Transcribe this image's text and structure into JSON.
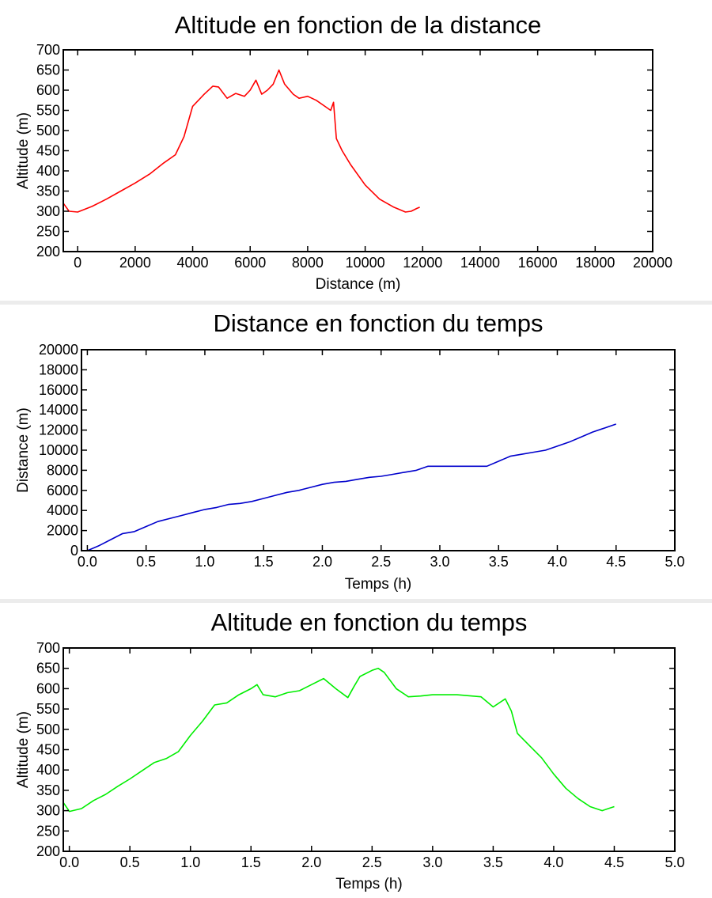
{
  "chart_data": [
    {
      "type": "line",
      "title": "Altitude en fonction de la distance",
      "xlabel": "Distance (m)",
      "ylabel": "Altitude (m)",
      "xlim": [
        -500,
        20000
      ],
      "ylim": [
        200,
        700
      ],
      "xticks": [
        0,
        2000,
        4000,
        6000,
        8000,
        10000,
        12000,
        14000,
        16000,
        18000,
        20000
      ],
      "yticks": [
        200,
        250,
        300,
        350,
        400,
        450,
        500,
        550,
        600,
        650,
        700
      ],
      "grid": false,
      "series": [
        {
          "color": "#ff0000",
          "x": [
            -500,
            -300,
            0,
            500,
            1000,
            1500,
            2000,
            2500,
            3000,
            3400,
            3700,
            4000,
            4400,
            4700,
            4900,
            5200,
            5500,
            5800,
            6000,
            6200,
            6400,
            6600,
            6800,
            7000,
            7200,
            7500,
            7700,
            8000,
            8300,
            8600,
            8800,
            8900,
            9000,
            9200,
            9500,
            10000,
            10500,
            11000,
            11400,
            11600,
            11800,
            11900
          ],
          "y": [
            320,
            300,
            298,
            312,
            330,
            350,
            370,
            392,
            420,
            440,
            485,
            560,
            590,
            610,
            608,
            580,
            592,
            585,
            600,
            625,
            590,
            600,
            615,
            650,
            615,
            590,
            580,
            585,
            575,
            560,
            550,
            570,
            480,
            450,
            415,
            365,
            330,
            310,
            298,
            300,
            307,
            310
          ]
        }
      ]
    },
    {
      "type": "line",
      "title": "Distance en fonction du temps",
      "xlabel": "Temps (h)",
      "ylabel": "Distance (m)",
      "xlim": [
        -0.05,
        5.0
      ],
      "ylim": [
        0,
        20000
      ],
      "xticks": [
        "0.0",
        "0.5",
        "1.0",
        "1.5",
        "2.0",
        "2.5",
        "3.0",
        "3.5",
        "4.0",
        "4.5",
        "5.0"
      ],
      "yticks": [
        0,
        2000,
        4000,
        6000,
        8000,
        10000,
        12000,
        14000,
        16000,
        18000,
        20000
      ],
      "grid": false,
      "series": [
        {
          "color": "#0000cc",
          "x": [
            0.0,
            0.1,
            0.2,
            0.3,
            0.4,
            0.5,
            0.6,
            0.7,
            0.8,
            0.9,
            1.0,
            1.1,
            1.2,
            1.3,
            1.4,
            1.5,
            1.6,
            1.7,
            1.8,
            1.9,
            2.0,
            2.1,
            2.2,
            2.3,
            2.4,
            2.5,
            2.6,
            2.7,
            2.8,
            2.9,
            3.0,
            3.1,
            3.2,
            3.3,
            3.4,
            3.5,
            3.6,
            3.7,
            3.8,
            3.9,
            4.0,
            4.1,
            4.2,
            4.3,
            4.4,
            4.5
          ],
          "y": [
            0,
            500,
            1100,
            1700,
            1900,
            2400,
            2900,
            3200,
            3500,
            3800,
            4100,
            4300,
            4600,
            4700,
            4900,
            5200,
            5500,
            5800,
            6000,
            6300,
            6600,
            6800,
            6900,
            7100,
            7300,
            7400,
            7600,
            7800,
            8000,
            8400,
            8400,
            8400,
            8400,
            8400,
            8400,
            8900,
            9400,
            9600,
            9800,
            10000,
            10400,
            10800,
            11300,
            11800,
            12200,
            12600
          ]
        }
      ]
    },
    {
      "type": "line",
      "title": "Altitude en fonction du temps",
      "xlabel": "Temps (h)",
      "ylabel": "Altitude (m)",
      "xlim": [
        -0.05,
        5.0
      ],
      "ylim": [
        200,
        700
      ],
      "xticks": [
        "0.0",
        "0.5",
        "1.0",
        "1.5",
        "2.0",
        "2.5",
        "3.0",
        "3.5",
        "4.0",
        "4.5",
        "5.0"
      ],
      "yticks": [
        200,
        250,
        300,
        350,
        400,
        450,
        500,
        550,
        600,
        650,
        700
      ],
      "grid": false,
      "series": [
        {
          "color": "#00ee00",
          "x": [
            -0.05,
            0.0,
            0.1,
            0.2,
            0.3,
            0.4,
            0.5,
            0.6,
            0.7,
            0.8,
            0.9,
            1.0,
            1.1,
            1.2,
            1.3,
            1.4,
            1.5,
            1.55,
            1.6,
            1.7,
            1.8,
            1.9,
            2.0,
            2.1,
            2.2,
            2.3,
            2.35,
            2.4,
            2.5,
            2.55,
            2.6,
            2.7,
            2.8,
            2.9,
            3.0,
            3.2,
            3.4,
            3.5,
            3.6,
            3.65,
            3.7,
            3.8,
            3.9,
            4.0,
            4.1,
            4.2,
            4.3,
            4.4,
            4.45,
            4.5
          ],
          "y": [
            320,
            298,
            305,
            325,
            340,
            360,
            378,
            398,
            418,
            428,
            445,
            485,
            520,
            560,
            565,
            585,
            600,
            610,
            585,
            580,
            590,
            595,
            610,
            625,
            600,
            578,
            605,
            630,
            645,
            650,
            640,
            600,
            580,
            582,
            585,
            585,
            580,
            555,
            575,
            545,
            490,
            460,
            430,
            390,
            355,
            330,
            310,
            300,
            305,
            310
          ]
        }
      ]
    }
  ]
}
